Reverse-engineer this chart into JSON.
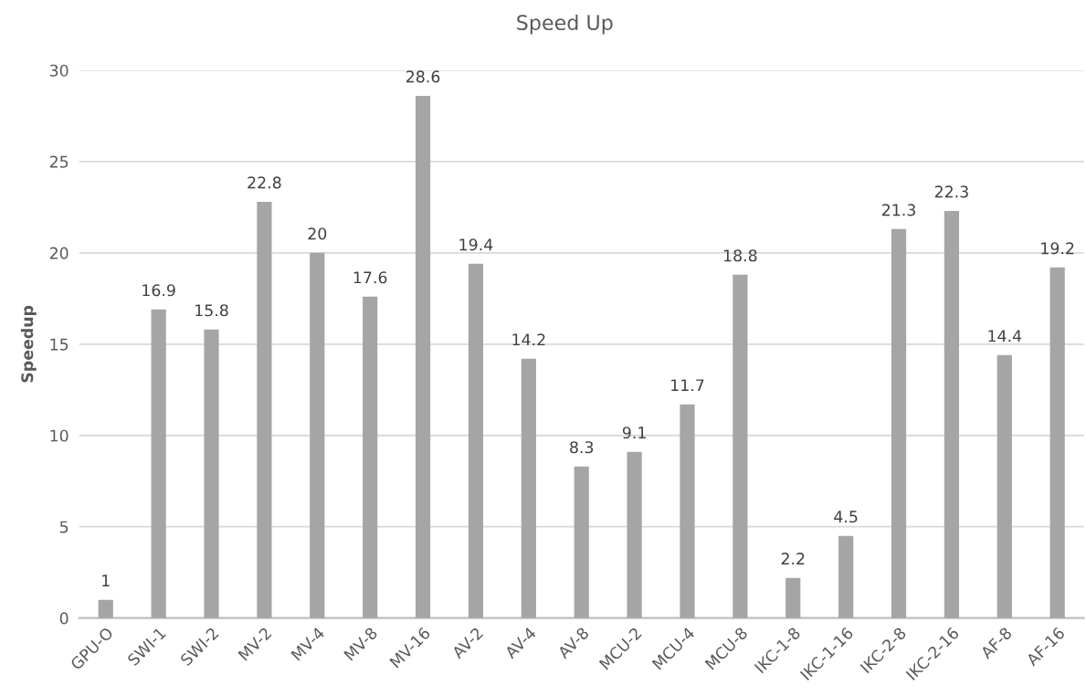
{
  "chart_data": {
    "type": "bar",
    "title": "Speed Up",
    "ylabel": "Speedup",
    "categories": [
      "GPU-O",
      "SWI-1",
      "SWI-2",
      "MV-2",
      "MV-4",
      "MV-8",
      "MV-16",
      "AV-2",
      "AV-4",
      "AV-8",
      "MCU-2",
      "MCU-4",
      "MCU-8",
      "IKC-1-8",
      "IKC-1-16",
      "IKC-2-8",
      "IKC-2-16",
      "AF-8",
      "AF-16"
    ],
    "values": [
      1,
      16.9,
      15.8,
      22.8,
      20,
      17.6,
      28.6,
      19.4,
      14.2,
      8.3,
      9.1,
      11.7,
      18.8,
      2.2,
      4.5,
      21.3,
      22.3,
      14.4,
      19.2
    ],
    "color": "#a5a5a5",
    "ylim": [
      0,
      30
    ],
    "yticks": [
      0,
      5,
      10,
      15,
      20,
      25,
      30
    ],
    "grid": "y",
    "data_labels": true
  }
}
